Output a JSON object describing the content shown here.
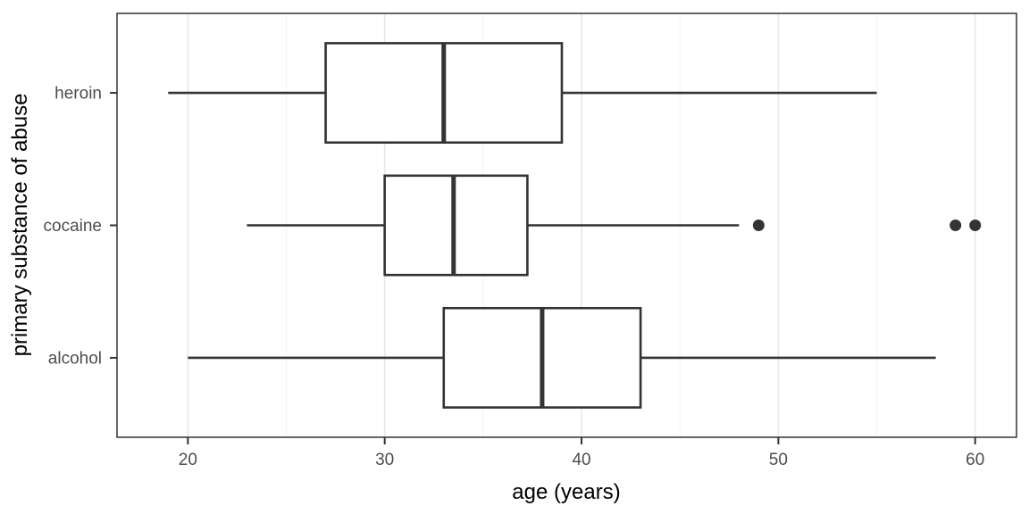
{
  "chart_data": {
    "type": "boxplot",
    "orientation": "horizontal",
    "title": "",
    "xlabel": "age (years)",
    "ylabel": "primary substance of abuse",
    "x_ticks": [
      20,
      30,
      40,
      50,
      60
    ],
    "x_tick_labels": [
      "20",
      "30",
      "40",
      "50",
      "60"
    ],
    "x_minor_ticks": [
      25,
      35,
      45,
      55
    ],
    "xlim": [
      16.4,
      62.1
    ],
    "grid": true,
    "categories_top_to_bottom": [
      "heroin",
      "cocaine",
      "alcohol"
    ],
    "series": [
      {
        "category": "heroin",
        "whisker_low": 19,
        "q1": 27,
        "median": 33,
        "q3": 39,
        "whisker_high": 55,
        "outliers": []
      },
      {
        "category": "cocaine",
        "whisker_low": 23,
        "q1": 30,
        "median": 33.5,
        "q3": 37.25,
        "whisker_high": 48,
        "outliers": [
          49,
          59,
          60
        ]
      },
      {
        "category": "alcohol",
        "whisker_low": 20,
        "q1": 33,
        "median": 38,
        "q3": 43,
        "whisker_high": 58,
        "outliers": []
      }
    ],
    "colors": {
      "box_stroke": "#333333",
      "box_fill": "#ffffff",
      "outlier_fill": "#333333",
      "panel_border": "#333333",
      "grid_major": "#e8e8e8",
      "grid_minor": "#f2f2f2",
      "tick_label": "#4d4d4d",
      "axis_title": "#000000",
      "background": "#ffffff"
    }
  }
}
